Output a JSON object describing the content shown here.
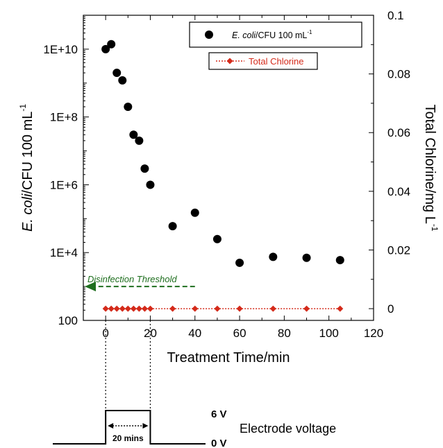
{
  "chart_data": {
    "type": "scatter",
    "xlabel": "Treatment Time/min",
    "ylabel_italic": "E. coli",
    "ylabel_rest": "/CFU 100 mL",
    "ylabel_sup": "-1",
    "y2label": "Total Chlorine/mg L",
    "y2label_sup": "-1",
    "xlim": [
      -10,
      120
    ],
    "x_ticks": [
      0,
      20,
      40,
      60,
      80,
      100,
      120
    ],
    "x_tick_labels": [
      "0",
      "20",
      "40",
      "60",
      "80",
      "100",
      "120"
    ],
    "y_scale": "log",
    "ylim": [
      100,
      100000000000
    ],
    "y_ticks": [
      100,
      10000,
      1000000,
      100000000,
      10000000000
    ],
    "y_tick_labels": [
      "100",
      "1E+4",
      "1E+6",
      "1E+8",
      "1E+10"
    ],
    "y2lim": [
      -0.004,
      0.1
    ],
    "y2_ticks": [
      0,
      0.02,
      0.04,
      0.06,
      0.08,
      0.1
    ],
    "y2_tick_labels": [
      "0",
      "0.02",
      "0.04",
      "0.06",
      "0.08",
      "0.1"
    ],
    "series": [
      {
        "name_italic": "E. coli",
        "name_rest": "/CFU 100 mL",
        "name_sup": "-1",
        "axis": "left",
        "color": "#000000",
        "marker": "circle",
        "x": [
          0,
          2.5,
          5,
          7.5,
          10,
          12.5,
          15,
          17.5,
          20,
          30,
          40,
          50,
          60,
          75,
          90,
          105
        ],
        "y": [
          10000000000,
          14000000000,
          2000000000,
          1200000000,
          200000000,
          30000000,
          20000000,
          3000000,
          1000000,
          60000,
          150000,
          25000,
          5000,
          7500,
          7000,
          6000
        ]
      },
      {
        "name": "Total Chlorine",
        "axis": "right",
        "color": "#d42a1a",
        "marker": "diamond",
        "line": "dotted",
        "x": [
          0,
          2.5,
          5,
          7.5,
          10,
          12.5,
          15,
          17.5,
          20,
          30,
          40,
          50,
          60,
          75,
          90,
          105
        ],
        "y": [
          0,
          0,
          0,
          0,
          0,
          0,
          0,
          0,
          0,
          0,
          0,
          0,
          0,
          0,
          0,
          0
        ]
      }
    ],
    "annotation": {
      "text": "Disinfection Threshold",
      "color": "#1e6e1e",
      "y": 1000,
      "x_from": 40,
      "x_to": -10
    },
    "voltage_panel": {
      "label": "Electrode voltage",
      "high_label": "6 V",
      "low_label": "0 V",
      "duration_label": "20 mins",
      "on_from": 0,
      "on_to": 20
    },
    "legend_position": "top-right"
  }
}
